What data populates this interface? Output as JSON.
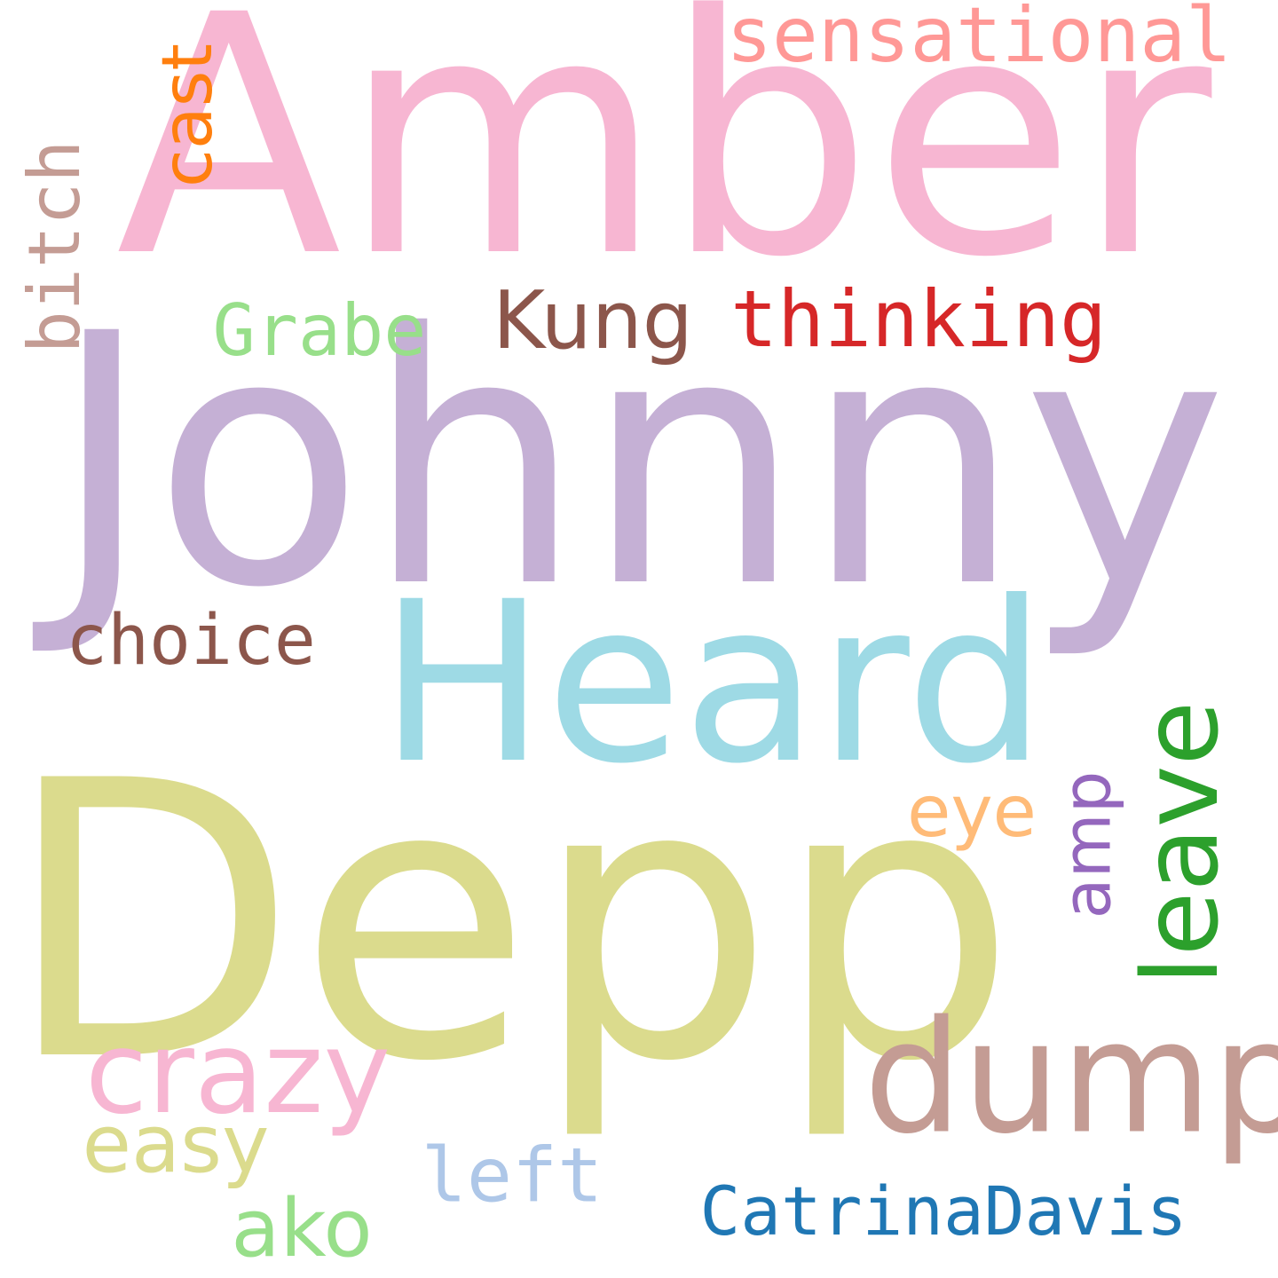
{
  "words": [
    {
      "text": "Johnny",
      "color": "#c5b0d5"
    },
    {
      "text": "Amber",
      "color": "#f7b6d2"
    },
    {
      "text": "Depp",
      "color": "#dbdb8d"
    },
    {
      "text": "Heard",
      "color": "#9edae5"
    },
    {
      "text": "dump",
      "color": "#c49c94"
    },
    {
      "text": "sensational",
      "color": "#ff9896"
    },
    {
      "text": "thinking",
      "color": "#d62728"
    },
    {
      "text": "Kung",
      "color": "#8c564b"
    },
    {
      "text": "Grabe",
      "color": "#98df8a"
    },
    {
      "text": "cast",
      "color": "#ff7f0e"
    },
    {
      "text": "bitch",
      "color": "#c49c94"
    },
    {
      "text": "choice",
      "color": "#8c564b"
    },
    {
      "text": "leave",
      "color": "#2ca02c"
    },
    {
      "text": "amp",
      "color": "#9467bd"
    },
    {
      "text": "eye",
      "color": "#ffbb78"
    },
    {
      "text": "crazy",
      "color": "#f7b6d2"
    },
    {
      "text": "easy",
      "color": "#dbdb8d"
    },
    {
      "text": "left",
      "color": "#aec7e8"
    },
    {
      "text": "ako",
      "color": "#98df8a"
    },
    {
      "text": "CatrinaDavis",
      "color": "#1f77b4"
    }
  ]
}
